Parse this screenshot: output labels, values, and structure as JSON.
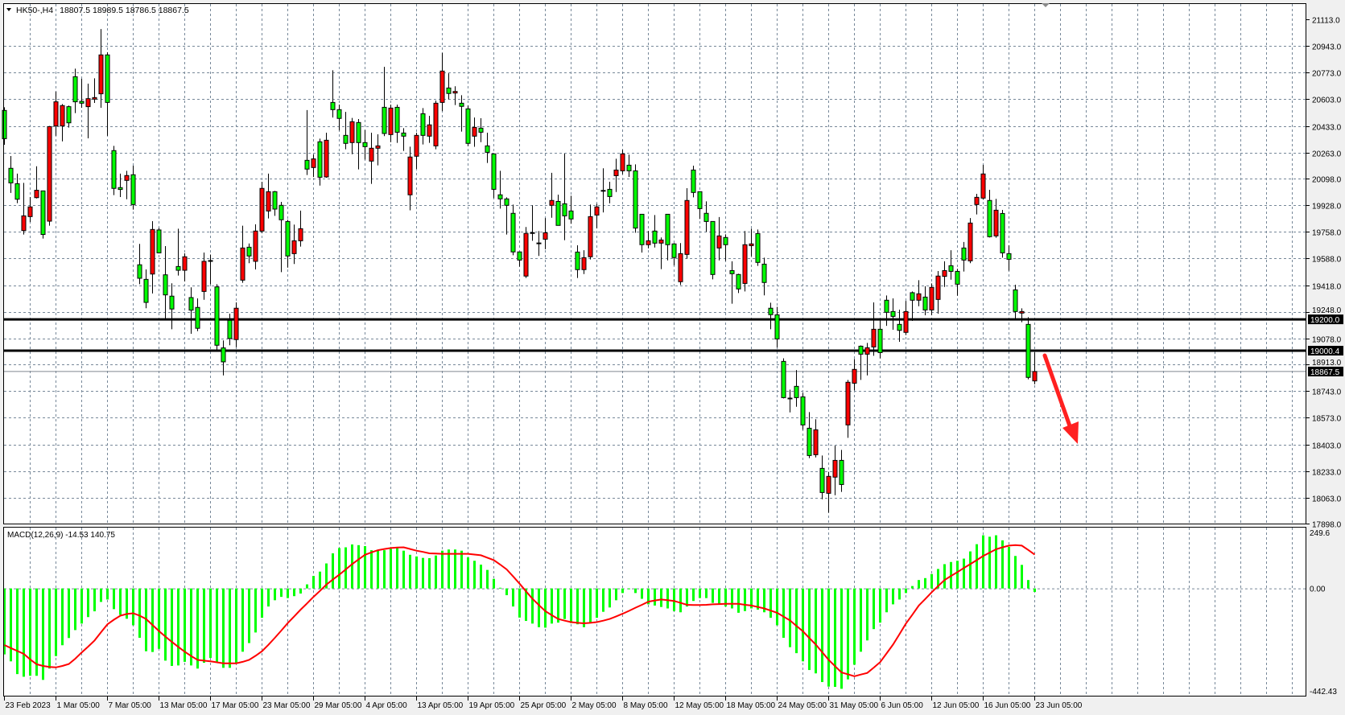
{
  "header": {
    "symbol": "HK50-,H4",
    "ohlc": "18807.5 18989.5 18786.5 18867.5"
  },
  "colors": {
    "background": "#ffffff",
    "grid": "#778899",
    "bull_candle": "#ff0000",
    "bear_candle": "#00ff00",
    "macd_histogram": "#00ff00",
    "signal_line": "#ff0000",
    "level_line": "#000000",
    "arrow": "#ff2020"
  },
  "price_axis": {
    "labels": [
      "21113.0",
      "20943.0",
      "20773.0",
      "20603.0",
      "20433.0",
      "20263.0",
      "20098.0",
      "19928.0",
      "19758.0",
      "19588.0",
      "19418.0",
      "19248.0",
      "19078.0",
      "18913.0",
      "18743.0",
      "18573.0",
      "18403.0",
      "18233.0",
      "18063.0",
      "17898.0"
    ],
    "range": [
      17898,
      21113
    ]
  },
  "levels": [
    {
      "label": "19200.0",
      "value": 19200.0
    },
    {
      "label": "19000.4",
      "value": 19000.4
    }
  ],
  "current_price": {
    "label": "18867.5",
    "value": 18867.5
  },
  "macd": {
    "label": "MACD(12,26,9) -14.53 140.75",
    "axis_labels": {
      "top": "249.6",
      "zero": "0.00",
      "bottom": "-442.43"
    },
    "range": [
      -442.43,
      249.6
    ],
    "histogram": [
      -274,
      -303,
      -356,
      -367,
      -363,
      -363,
      -380,
      -333,
      -281,
      -236,
      -206,
      -173,
      -146,
      -119,
      -95,
      -56,
      -46,
      -86,
      -110,
      -126,
      -153,
      -205,
      -261,
      -264,
      -251,
      -300,
      -322,
      -320,
      -305,
      -320,
      -333,
      -309,
      -289,
      -305,
      -330,
      -330,
      -311,
      -263,
      -227,
      -183,
      -122,
      -75,
      -49,
      -35,
      -40,
      -32,
      -21,
      17,
      52,
      70,
      104,
      146,
      168,
      171,
      183,
      180,
      176,
      159,
      161,
      159,
      165,
      168,
      157,
      140,
      133,
      127,
      126,
      137,
      157,
      162,
      162,
      157,
      129,
      115,
      99,
      77,
      40,
      3,
      -28,
      -75,
      -121,
      -135,
      -146,
      -161,
      -163,
      -146,
      -142,
      -127,
      -144,
      -149,
      -161,
      -140,
      -122,
      -97,
      -79,
      -49,
      -19,
      0,
      -19,
      -43,
      -66,
      -71,
      -77,
      -83,
      -94,
      -99,
      -75,
      -52,
      -40,
      -40,
      -60,
      -66,
      -75,
      -83,
      -101,
      -94,
      -83,
      -88,
      -99,
      -122,
      -153,
      -205,
      -244,
      -269,
      -303,
      -339,
      -353,
      -389,
      -408,
      -409,
      -417,
      -378,
      -317,
      -263,
      -216,
      -169,
      -142,
      -99,
      -66,
      -46,
      -19,
      10,
      35,
      43,
      60,
      81,
      101,
      110,
      115,
      124,
      154,
      184,
      221,
      215,
      221,
      200,
      173,
      135,
      98,
      35,
      -14.53
    ],
    "signal": [
      -235,
      -248,
      -260,
      -272,
      -295,
      -315,
      -322,
      -326,
      -328,
      -322,
      -314,
      -292,
      -266,
      -242,
      -216,
      -182,
      -149,
      -130,
      -113,
      -106,
      -103,
      -113,
      -127,
      -152,
      -177,
      -200,
      -222,
      -243,
      -263,
      -281,
      -297,
      -300,
      -303,
      -307,
      -311,
      -311,
      -311,
      -305,
      -297,
      -280,
      -261,
      -234,
      -205,
      -175,
      -144,
      -116,
      -88,
      -62,
      -35,
      -10,
      16,
      37,
      57,
      79,
      101,
      121,
      140,
      150,
      159,
      164,
      168,
      170,
      171,
      164,
      157,
      152,
      146,
      145,
      144,
      144,
      144,
      144,
      144,
      141,
      138,
      128,
      118,
      99,
      79,
      50,
      20,
      -12,
      -43,
      -69,
      -94,
      -111,
      -127,
      -134,
      -140,
      -143,
      -145,
      -143,
      -140,
      -134,
      -127,
      -116,
      -105,
      -93,
      -80,
      -68,
      -55,
      -50,
      -46,
      -49,
      -52,
      -60,
      -68,
      -69,
      -69,
      -68,
      -66,
      -65,
      -64,
      -64,
      -64,
      -68,
      -71,
      -77,
      -83,
      -92,
      -101,
      -117,
      -133,
      -156,
      -178,
      -206,
      -233,
      -265,
      -297,
      -323,
      -349,
      -357,
      -365,
      -358,
      -351,
      -329,
      -306,
      -270,
      -233,
      -190,
      -146,
      -109,
      -71,
      -44,
      -16,
      10,
      35,
      52,
      68,
      85,
      101,
      118,
      135,
      149,
      163,
      171,
      178,
      180,
      178,
      160,
      140.75
    ]
  },
  "time_axis": {
    "labels": [
      "23 Feb 2023",
      "1 Mar 05:00",
      "7 Mar 05:00",
      "13 Mar 05:00",
      "17 Mar 05:00",
      "23 Mar 05:00",
      "29 Mar 05:00",
      "4 Apr 05:00",
      "13 Apr 05:00",
      "19 Apr 05:00",
      "25 Apr 05:00",
      "2 May 05:00",
      "8 May 05:00",
      "12 May 05:00",
      "18 May 05:00",
      "24 May 05:00",
      "31 May 05:00",
      "6 Jun 05:00",
      "12 Jun 05:00",
      "16 Jun 05:00",
      "23 Jun 05:00"
    ]
  },
  "arrow": {
    "direction": "down",
    "icon": "red-arrow-down-right"
  },
  "chart_data": {
    "type": "candlestick",
    "timeframe": "H4",
    "columns": [
      "open",
      "high",
      "low",
      "close"
    ],
    "ylim": [
      17898,
      21113
    ],
    "grid": true,
    "candles": [
      [
        20532,
        20552,
        20313,
        20352
      ],
      [
        20163,
        20241,
        20006,
        20070
      ],
      [
        20065,
        20129,
        19941,
        19966
      ],
      [
        19766,
        20070,
        19741,
        19860
      ],
      [
        19855,
        19980,
        19821,
        19917
      ],
      [
        19976,
        20176,
        19971,
        20023
      ],
      [
        20019,
        20019,
        19715,
        19741
      ],
      [
        19826,
        20433,
        19797,
        20429
      ],
      [
        20433,
        20652,
        20370,
        20587
      ],
      [
        20433,
        20573,
        20335,
        20563
      ],
      [
        20556,
        20563,
        20423,
        20453
      ],
      [
        20747,
        20798,
        20515,
        20587
      ],
      [
        20590,
        20734,
        20549,
        20578
      ],
      [
        20556,
        20703,
        20354,
        20607
      ],
      [
        20604,
        20737,
        20580,
        20614
      ],
      [
        20638,
        21051,
        20549,
        20886
      ],
      [
        20886,
        20903,
        20370,
        20583
      ],
      [
        20276,
        20306,
        19992,
        20035
      ],
      [
        20040,
        20129,
        19980,
        20028
      ],
      [
        20086,
        20147,
        19966,
        20117
      ],
      [
        20122,
        20180,
        19900,
        19932
      ],
      [
        19548,
        19681,
        19424,
        19462
      ],
      [
        19455,
        19518,
        19271,
        19308
      ],
      [
        19489,
        19826,
        19365,
        19773
      ],
      [
        19770,
        19783,
        19621,
        19624
      ],
      [
        19484,
        19667,
        19202,
        19356
      ],
      [
        19348,
        19430,
        19137,
        19266
      ],
      [
        19537,
        19778,
        19479,
        19513
      ],
      [
        19513,
        19621,
        19442,
        19599
      ],
      [
        19339,
        19404,
        19108,
        19259
      ],
      [
        19276,
        19334,
        19125,
        19143
      ],
      [
        19378,
        19626,
        19325,
        19570
      ],
      [
        19575,
        19613,
        19424,
        19575
      ],
      [
        19407,
        19424,
        19006,
        19035
      ],
      [
        19018,
        19066,
        18843,
        18929
      ],
      [
        19194,
        19236,
        19035,
        19078
      ],
      [
        19071,
        19308,
        19023,
        19271
      ],
      [
        19450,
        19797,
        19433,
        19655
      ],
      [
        19660,
        19684,
        19558,
        19604
      ],
      [
        19570,
        19806,
        19518,
        19763
      ],
      [
        19763,
        20077,
        19749,
        20035
      ],
      [
        19891,
        20129,
        19843,
        20014
      ],
      [
        20014,
        20019,
        19860,
        19903
      ],
      [
        19927,
        19949,
        19501,
        19835
      ],
      [
        19824,
        19835,
        19530,
        19604
      ],
      [
        19619,
        19804,
        19553,
        19701
      ],
      [
        19701,
        19893,
        19664,
        19778
      ],
      [
        20214,
        20534,
        20120,
        20158
      ],
      [
        20168,
        20250,
        20108,
        20223
      ],
      [
        20332,
        20352,
        20053,
        20106
      ],
      [
        20108,
        20390,
        20103,
        20342
      ],
      [
        20583,
        20788,
        20487,
        20537
      ],
      [
        20537,
        20569,
        20404,
        20481
      ],
      [
        20373,
        20523,
        20284,
        20322
      ],
      [
        20327,
        20484,
        20253,
        20460
      ],
      [
        20455,
        20477,
        20156,
        20327
      ],
      [
        20327,
        20407,
        20219,
        20301
      ],
      [
        20209,
        20390,
        20064,
        20291
      ],
      [
        20291,
        20380,
        20182,
        20306
      ],
      [
        20552,
        20810,
        20368,
        20385
      ],
      [
        20378,
        20569,
        20330,
        20547
      ],
      [
        20552,
        20569,
        20325,
        20393
      ],
      [
        20388,
        20419,
        20274,
        20368
      ],
      [
        19994,
        20301,
        19895,
        20235
      ],
      [
        20240,
        20390,
        20159,
        20373
      ],
      [
        20511,
        20547,
        20315,
        20373
      ],
      [
        20368,
        20498,
        20325,
        20440
      ],
      [
        20306,
        20595,
        20284,
        20578
      ],
      [
        20583,
        20899,
        20528,
        20783
      ],
      [
        20675,
        20769,
        20602,
        20640
      ],
      [
        20643,
        20686,
        20566,
        20653
      ],
      [
        20578,
        20629,
        20397,
        20558
      ],
      [
        20542,
        20564,
        20305,
        20322
      ],
      [
        20368,
        20487,
        20300,
        20424
      ],
      [
        20419,
        20482,
        20330,
        20393
      ],
      [
        20306,
        20390,
        20197,
        20265
      ],
      [
        20255,
        20255,
        19973,
        20029
      ],
      [
        19994,
        20147,
        19906,
        19968
      ],
      [
        19968,
        19978,
        19741,
        19927
      ],
      [
        19876,
        19932,
        19609,
        19630
      ],
      [
        19630,
        19630,
        19536,
        19578
      ],
      [
        19476,
        19789,
        19464,
        19748
      ],
      [
        19753,
        19927,
        19701,
        19753
      ],
      [
        19687,
        19763,
        19604,
        19687
      ],
      [
        19711,
        19846,
        19647,
        19752
      ],
      [
        19927,
        20134,
        19848,
        19958
      ],
      [
        19952,
        19995,
        19799,
        19799
      ],
      [
        19937,
        20257,
        19705,
        19860
      ],
      [
        19891,
        19988,
        19809,
        19840
      ],
      [
        19629,
        19672,
        19464,
        19517
      ],
      [
        19517,
        19641,
        19489,
        19593
      ],
      [
        19599,
        19932,
        19582,
        19855
      ],
      [
        19865,
        19937,
        19780,
        19917
      ],
      [
        20022,
        20163,
        19882,
        20022
      ],
      [
        20029,
        20077,
        19940,
        19983
      ],
      [
        20116,
        20224,
        20012,
        20152
      ],
      [
        20147,
        20282,
        20125,
        20255
      ],
      [
        20183,
        20250,
        20108,
        20147
      ],
      [
        20147,
        20188,
        19752,
        19782
      ],
      [
        19870,
        19870,
        19626,
        19676
      ],
      [
        19676,
        19763,
        19653,
        19701
      ],
      [
        19763,
        19865,
        19658,
        19686
      ],
      [
        19686,
        19722,
        19520,
        19706
      ],
      [
        19870,
        19870,
        19576,
        19676
      ],
      [
        19681,
        19686,
        19544,
        19594
      ],
      [
        19440,
        19686,
        19419,
        19619
      ],
      [
        19614,
        20036,
        19587,
        19958
      ],
      [
        20152,
        20180,
        19978,
        20009
      ],
      [
        20014,
        20014,
        19840,
        19906
      ],
      [
        19876,
        19952,
        19758,
        19824
      ],
      [
        19824,
        19824,
        19455,
        19486
      ],
      [
        19655,
        19852,
        19576,
        19732
      ],
      [
        19722,
        19742,
        19573,
        19676
      ],
      [
        19511,
        19570,
        19300,
        19491
      ],
      [
        19486,
        19491,
        19368,
        19394
      ],
      [
        19429,
        19763,
        19378,
        19676
      ],
      [
        19670,
        19778,
        19602,
        19681
      ],
      [
        19747,
        19773,
        19541,
        19563
      ],
      [
        19552,
        19593,
        19353,
        19435
      ],
      [
        19271,
        19306,
        19137,
        19230
      ],
      [
        19229,
        19280,
        19021,
        19075
      ],
      [
        18932,
        18952,
        18696,
        18701
      ],
      [
        18698,
        18752,
        18607,
        18698
      ],
      [
        18773,
        18877,
        18643,
        18701
      ],
      [
        18706,
        18732,
        18496,
        18527
      ],
      [
        18506,
        18609,
        18315,
        18332
      ],
      [
        18337,
        18563,
        18320,
        18496
      ],
      [
        18250,
        18332,
        18053,
        18096
      ],
      [
        18091,
        18228,
        17968,
        18199
      ],
      [
        18194,
        18395,
        18079,
        18301
      ],
      [
        18301,
        18368,
        18100,
        18147
      ],
      [
        18527,
        18814,
        18445,
        18799
      ],
      [
        18793,
        18947,
        18747,
        18881
      ],
      [
        19029,
        19034,
        18814,
        18978
      ],
      [
        18978,
        19050,
        18843,
        19019
      ],
      [
        19024,
        19308,
        18968,
        19137
      ],
      [
        19137,
        19193,
        18952,
        18988
      ],
      [
        19322,
        19352,
        19159,
        19245
      ],
      [
        19250,
        19334,
        19134,
        19219
      ],
      [
        19168,
        19262,
        19057,
        19130
      ],
      [
        19117,
        19318,
        19100,
        19250
      ],
      [
        19370,
        19378,
        19190,
        19322
      ],
      [
        19322,
        19450,
        19284,
        19363
      ],
      [
        19342,
        19411,
        19226,
        19260
      ],
      [
        19260,
        19429,
        19226,
        19404
      ],
      [
        19327,
        19508,
        19236,
        19476
      ],
      [
        19474,
        19570,
        19407,
        19511
      ],
      [
        19542,
        19641,
        19453,
        19506
      ],
      [
        19506,
        19522,
        19351,
        19424
      ],
      [
        19655,
        19693,
        19505,
        19578
      ],
      [
        19573,
        19846,
        19558,
        19814
      ],
      [
        19932,
        20000,
        19869,
        19978
      ],
      [
        19973,
        20185,
        19963,
        20127
      ],
      [
        19958,
        20026,
        19722,
        19727
      ],
      [
        19732,
        19968,
        19720,
        19896
      ],
      [
        19875,
        19898,
        19593,
        19624
      ],
      [
        19619,
        19672,
        19510,
        19583
      ],
      [
        19388,
        19421,
        19202,
        19250
      ],
      [
        19240,
        19270,
        19182,
        19250
      ],
      [
        19168,
        19214,
        18818,
        18830
      ],
      [
        18807.5,
        18989.5,
        18786.5,
        18867.5
      ]
    ]
  }
}
